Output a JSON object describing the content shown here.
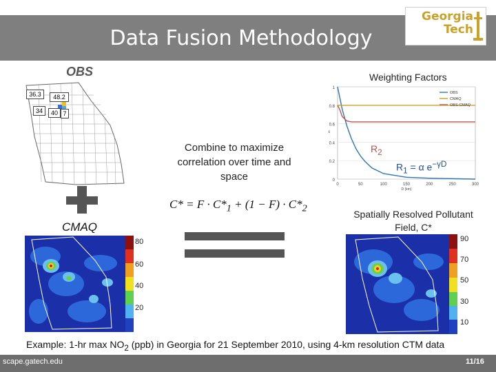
{
  "slide": {
    "title": "Data Fusion Methodology",
    "logo_text_line1": "Georgia",
    "logo_text_line2": "Tech",
    "footer_left": "scape.gatech.edu",
    "page_number": "11/16"
  },
  "labels": {
    "obs": "OBS",
    "cmaq": "CMAQ",
    "weighting_factors": "Weighting Factors",
    "combine": "Combine to maximize correlation over time and space",
    "spatial_line1": "Spatially Resolved Pollutant",
    "spatial_line2": "Field, C*",
    "formula": "C* = F · C*1 + (1 − F) · C*2",
    "r2": "R2",
    "r1": "R1 = α e−γD",
    "example": "Example: 1-hr max NO2 (ppb) in Georgia for 21 September 2010, using 4-km resolution CTM data"
  },
  "obs_values": [
    "36.3",
    "48.2",
    "34",
    "40",
    "7"
  ],
  "cmaq_colorbar": [
    "80",
    "60",
    "40",
    "20"
  ],
  "fused_colorbar": [
    "90",
    "70",
    "50",
    "30",
    "10"
  ],
  "chart_data": {
    "type": "line",
    "x_ticks": [
      "0",
      "50",
      "100",
      "150",
      "200",
      "250",
      "300"
    ],
    "y_ticks": [
      "1",
      "0.8",
      "0.6",
      "0.4",
      "0.2",
      "0"
    ],
    "xlabel": "D (km)",
    "xlim": [
      0,
      300
    ],
    "ylim": [
      0,
      1
    ],
    "series": [
      {
        "name": "OBS",
        "color": "#2e75b6",
        "x": [
          0,
          10,
          20,
          30,
          40,
          50,
          60,
          75,
          100,
          150,
          200,
          300
        ],
        "y": [
          1.0,
          0.76,
          0.58,
          0.44,
          0.33,
          0.25,
          0.19,
          0.12,
          0.06,
          0.02,
          0.01,
          0.0
        ]
      },
      {
        "name": "CMAQ",
        "color": "#c9a227",
        "x": [
          0,
          300
        ],
        "y": [
          0.8,
          0.8
        ]
      },
      {
        "name": "OBS-CMAQ",
        "color": "#c0504d",
        "x": [
          0,
          5,
          10,
          20,
          30,
          300
        ],
        "y": [
          0.8,
          0.75,
          0.68,
          0.63,
          0.62,
          0.62
        ]
      }
    ]
  }
}
